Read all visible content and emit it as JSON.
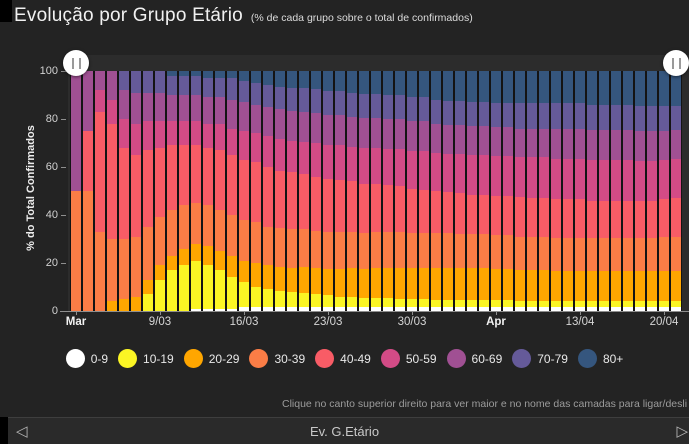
{
  "header": {
    "title": "Evolução por Grupo Etário",
    "subtitle": "(% de cada grupo sobre o total de confirmados)"
  },
  "hint": {
    "text": "Clique no canto superior direito para ver maior e no nome das camadas para ligar/desli"
  },
  "footer": {
    "label": "Ev. G.Etário",
    "prev_icon": "◁",
    "next_icon": "▷"
  },
  "colors": {
    "page_bg": "#232323",
    "plot_bg": "#2c2c2c",
    "footer_bg": "#2a2a2a",
    "axis": "#8f8f8f",
    "title_text": "#f1f1f1",
    "slider_handle": "#ffffff"
  },
  "chart_data": {
    "type": "bar",
    "stacked": true,
    "unit": "%",
    "title": "Evolução por Grupo Etário",
    "subtitle": "(% de cada grupo sobre o total de confirmados)",
    "ylabel": "% do Total Confirmados",
    "ylim": [
      0,
      100
    ],
    "y_ticks": [
      0,
      20,
      40,
      60,
      80,
      100
    ],
    "grid": false,
    "legend_position": "bottom",
    "categories": [
      "2/03",
      "3/03",
      "4/03",
      "5/03",
      "6/03",
      "7/03",
      "8/03",
      "9/03",
      "10/03",
      "11/03",
      "12/03",
      "13/03",
      "14/03",
      "15/03",
      "16/03",
      "17/03",
      "18/03",
      "19/03",
      "20/03",
      "21/03",
      "22/03",
      "23/03",
      "24/03",
      "25/03",
      "26/03",
      "27/03",
      "28/03",
      "29/03",
      "30/03",
      "31/03",
      "1/04",
      "2/04",
      "3/04",
      "4/04",
      "5/04",
      "6/04",
      "7/04",
      "8/04",
      "9/04",
      "10/04",
      "11/04",
      "12/04",
      "13/04",
      "14/04",
      "15/04",
      "16/04",
      "17/04",
      "18/04",
      "19/04",
      "20/04",
      "21/04"
    ],
    "x_ticks": [
      {
        "index": 0,
        "label": "Mar",
        "bold": true
      },
      {
        "index": 7,
        "label": "9/03",
        "bold": false
      },
      {
        "index": 14,
        "label": "16/03",
        "bold": false
      },
      {
        "index": 21,
        "label": "23/03",
        "bold": false
      },
      {
        "index": 28,
        "label": "30/03",
        "bold": false
      },
      {
        "index": 35,
        "label": "Apr",
        "bold": true
      },
      {
        "index": 42,
        "label": "13/04",
        "bold": false
      },
      {
        "index": 49,
        "label": "20/04",
        "bold": false
      }
    ],
    "series": [
      {
        "name": "0-9",
        "color": "#ffffff",
        "values": [
          0,
          0,
          0,
          0,
          0,
          0,
          0,
          0,
          0,
          0,
          1,
          1,
          1,
          1,
          1.5,
          1.5,
          1.5,
          1.5,
          1.5,
          1.5,
          1.5,
          1.5,
          1.5,
          1.5,
          1.5,
          1.5,
          1.5,
          1.5,
          1.5,
          1.5,
          1.5,
          1.5,
          1.5,
          1.5,
          1.5,
          1.5,
          1.5,
          1.5,
          1.5,
          1.5,
          1.5,
          1.5,
          1.5,
          1.5,
          1.5,
          1.5,
          1.5,
          1.5,
          1.5,
          1.5,
          1.5
        ]
      },
      {
        "name": "10-19",
        "color": "#fbf524",
        "values": [
          0,
          0,
          0,
          0,
          0,
          0,
          7,
          13,
          17,
          19,
          20,
          18,
          16,
          13,
          10.5,
          8.5,
          7.5,
          7,
          6.5,
          6,
          5.5,
          5,
          4.5,
          4.5,
          4,
          4,
          4,
          3.5,
          3.5,
          3.5,
          3,
          3,
          3,
          3,
          3,
          3,
          3,
          2.5,
          2.5,
          2.5,
          2.5,
          2.5,
          2.5,
          2.5,
          2.5,
          2.5,
          2.5,
          2.5,
          2.5,
          2.5,
          2.5
        ]
      },
      {
        "name": "20-29",
        "color": "#ffa600",
        "values": [
          0,
          0,
          0,
          4,
          5,
          6,
          6,
          6,
          6,
          7,
          7,
          8,
          8,
          9,
          9,
          10,
          10,
          10,
          10,
          11,
          11,
          11,
          11.5,
          12,
          12,
          12.5,
          12.5,
          13,
          13,
          13,
          13.5,
          13.5,
          13.5,
          13.5,
          13.5,
          13,
          13,
          13,
          13,
          13,
          12.5,
          12.5,
          12.5,
          12.5,
          12.5,
          12.5,
          12.5,
          12.5,
          12.5,
          12.5,
          12.5
        ]
      },
      {
        "name": "30-39",
        "color": "#fb7d46",
        "values": [
          50,
          50,
          33,
          26,
          25,
          25,
          22,
          20,
          19,
          18,
          17,
          17,
          17,
          17,
          17,
          17,
          16,
          16,
          16,
          15.5,
          15.5,
          15.5,
          15.5,
          15,
          15,
          15,
          15,
          15,
          14.5,
          14.5,
          14.5,
          14.5,
          14,
          14,
          14,
          14,
          14,
          14,
          14,
          14,
          14,
          14,
          14,
          14,
          14,
          14,
          14,
          14,
          14,
          14.5,
          14.5
        ]
      },
      {
        "name": "40-49",
        "color": "#f85c66",
        "values": [
          0,
          25,
          50,
          48,
          38,
          34,
          32,
          29,
          27,
          25,
          24,
          24,
          25,
          25,
          25,
          25,
          25,
          24,
          24,
          23,
          22.5,
          22,
          21.5,
          21,
          20.5,
          20,
          19.5,
          19,
          18.5,
          18,
          17.5,
          17,
          17,
          16.5,
          16.5,
          16.5,
          16.5,
          16.5,
          16,
          16,
          16,
          16,
          16,
          15.5,
          15.5,
          15.5,
          15.5,
          15.5,
          15.5,
          15.5,
          16
        ]
      },
      {
        "name": "50-59",
        "color": "#d34b86",
        "values": [
          0,
          0,
          9,
          10,
          12,
          13,
          12,
          11,
          10,
          10,
          10,
          10,
          11,
          11,
          12,
          12,
          13,
          13,
          13,
          13.5,
          14,
          14,
          14.5,
          14.5,
          15,
          15,
          15,
          15.5,
          15.5,
          16,
          16,
          16,
          16.5,
          16.5,
          16.5,
          16.5,
          16.5,
          16.5,
          17,
          17,
          17,
          17,
          17,
          17,
          17,
          17,
          17,
          16.5,
          16.5,
          16.5,
          16.5
        ]
      },
      {
        "name": "60-69",
        "color": "#a05093",
        "values": [
          50,
          25,
          8,
          12,
          12,
          13,
          12,
          12,
          11,
          11,
          11,
          11,
          11,
          12,
          12,
          12,
          12,
          12.5,
          12.5,
          12.5,
          12.5,
          12.5,
          12.5,
          12.5,
          12.5,
          12.5,
          12.5,
          12.5,
          12.5,
          12.5,
          12,
          12,
          12,
          12,
          12,
          12,
          12,
          12,
          12,
          12,
          12.5,
          12.5,
          12.5,
          12.5,
          12.5,
          12.5,
          12.5,
          12.5,
          12.5,
          12,
          12
        ]
      },
      {
        "name": "70-79",
        "color": "#655a99",
        "values": [
          0,
          0,
          0,
          0,
          8,
          9,
          9,
          9,
          8,
          8,
          8,
          8,
          8,
          9,
          9,
          9,
          9,
          9.5,
          9.5,
          10,
          10,
          10,
          10,
          10,
          10,
          10,
          10,
          10,
          10,
          10,
          10,
          10,
          10,
          10,
          10,
          10,
          10,
          10.5,
          10.5,
          10.5,
          10.5,
          10.5,
          10.5,
          10.5,
          10.5,
          10.5,
          10.5,
          10.5,
          10.5,
          10.5,
          10
        ]
      },
      {
        "name": "80+",
        "color": "#35567e",
        "values": [
          0,
          0,
          0,
          0,
          0,
          0,
          0,
          0,
          2,
          2,
          2,
          3,
          3,
          3,
          4,
          5,
          6,
          6.5,
          7,
          7,
          7.5,
          8.5,
          8.5,
          9,
          9.5,
          9.5,
          10,
          10,
          11,
          11,
          12,
          12.5,
          12.5,
          13,
          13,
          13.5,
          13.5,
          13.5,
          13.5,
          13.5,
          13.5,
          13.5,
          13.5,
          14,
          14,
          14,
          14,
          14.5,
          14.5,
          14.5,
          14.5
        ]
      }
    ]
  }
}
